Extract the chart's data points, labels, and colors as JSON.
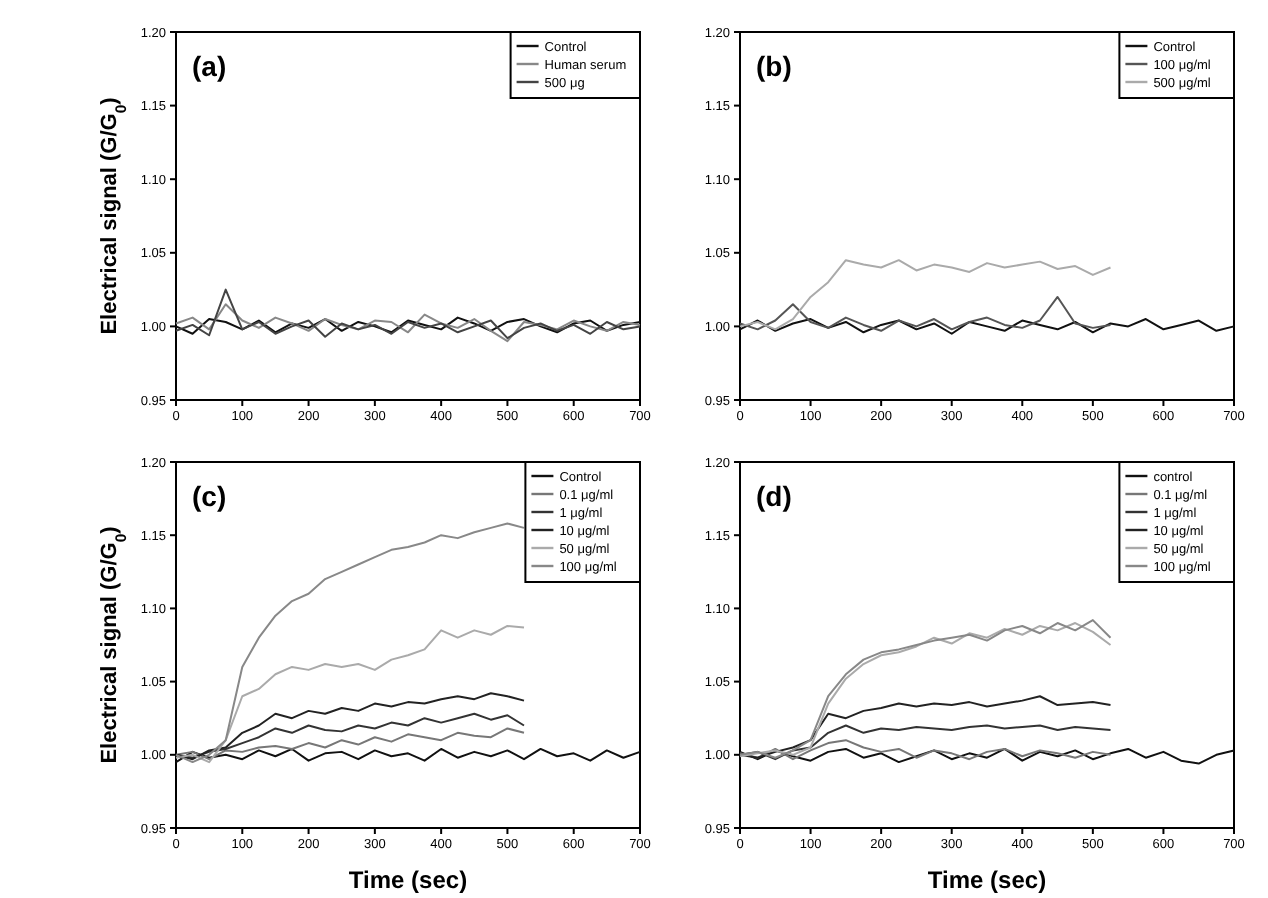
{
  "chart_data": [
    {
      "type": "line",
      "ylabel": "Electrical signal (G/G$_{0}$)",
      "annotations": [
        "(a)"
      ],
      "legend": "top right",
      "xlim": [
        0,
        700
      ],
      "xticks": [
        0,
        100,
        200,
        300,
        400,
        500,
        600,
        700
      ],
      "ylim": [
        0.95,
        1.2
      ],
      "yticks": [
        0.95,
        {
          "value": 1.0,
          "label": "1.00"
        },
        1.05,
        {
          "value": 1.1,
          "label": "1.10"
        },
        1.15,
        {
          "value": 1.2,
          "label": "1.20"
        }
      ],
      "x": [
        0,
        25,
        50,
        75,
        100,
        125,
        150,
        175,
        200,
        225,
        250,
        275,
        300,
        325,
        350,
        375,
        400,
        425,
        450,
        475,
        500,
        525,
        550,
        575,
        600,
        625,
        650,
        675,
        700
      ],
      "series": [
        {
          "name": "Control",
          "color": "#111111",
          "values": [
            1.0,
            0.995,
            1.005,
            1.003,
            0.998,
            1.004,
            0.996,
            1.002,
            0.999,
            1.005,
            0.997,
            1.003,
            1.0,
            0.996,
            1.004,
            1.001,
            0.998,
            1.006,
            1.002,
            0.997,
            1.003,
            1.005,
            1.0,
            0.996,
            1.002,
            1.004,
            0.997,
            1.001,
            1.003
          ]
        },
        {
          "name": "Human serum",
          "color": "#888888",
          "values": [
            1.002,
            1.006,
            0.998,
            1.015,
            1.004,
            0.999,
            1.006,
            1.002,
            0.997,
            1.005,
            1.001,
            0.998,
            1.004,
            1.003,
            0.996,
            1.008,
            1.002,
            0.999,
            1.005,
            0.997,
            0.99,
            1.003,
            1.001,
            0.998,
            1.004,
            1.0,
            0.997,
            1.003,
            1.001
          ]
        },
        {
          "name": "500 μg",
          "color": "#444444",
          "values": [
            0.997,
            1.001,
            0.994,
            1.025,
            0.998,
            1.003,
            0.995,
            1.0,
            1.004,
            0.993,
            1.002,
            0.998,
            1.001,
            0.995,
            1.003,
            0.999,
            1.002,
            0.996,
            1.0,
            1.004,
            0.992,
            0.999,
            1.002,
            0.997,
            1.001,
            0.995,
            1.003,
            0.998,
            1.0
          ]
        }
      ]
    },
    {
      "type": "line",
      "annotations": [
        "(b)"
      ],
      "legend": "top right",
      "xlim": [
        0,
        700
      ],
      "xticks": [
        0,
        100,
        200,
        300,
        400,
        500,
        600,
        700
      ],
      "ylim": [
        0.95,
        1.2
      ],
      "yticks": [
        0.95,
        {
          "value": 1.0,
          "label": "1.00"
        },
        1.05,
        {
          "value": 1.1,
          "label": "1.10"
        },
        1.15,
        {
          "value": 1.2,
          "label": "1.20"
        }
      ],
      "x": [
        0,
        25,
        50,
        75,
        100,
        125,
        150,
        175,
        200,
        225,
        250,
        275,
        300,
        325,
        350,
        375,
        400,
        425,
        450,
        475,
        500,
        525,
        550,
        575,
        600,
        625,
        650,
        675,
        700
      ],
      "series": [
        {
          "name": "Control",
          "color": "#111111",
          "values": [
            0.998,
            1.004,
            0.997,
            1.002,
            1.005,
            0.999,
            1.003,
            0.996,
            1.001,
            1.004,
            0.998,
            1.002,
            0.995,
            1.003,
            1.0,
            0.997,
            1.004,
            1.001,
            0.998,
            1.003,
            0.996,
            1.002,
            1.0,
            1.005,
            0.998,
            1.001,
            1.004,
            0.997,
            1.0
          ]
        },
        {
          "name": "100 μg/ml",
          "color": "#555555",
          "values": [
            1.002,
            0.998,
            1.004,
            1.015,
            1.003,
            0.999,
            1.006,
            1.001,
            0.997,
            1.004,
            1.0,
            1.005,
            0.998,
            1.003,
            1.006,
            1.001,
            0.999,
            1.004,
            1.02,
            1.002,
            0.999,
            1.001,
            null,
            null,
            null,
            null,
            null,
            null,
            null
          ]
        },
        {
          "name": "500 μg/ml",
          "color": "#aaaaaa",
          "values": [
            1.0,
            1.003,
            0.998,
            1.005,
            1.02,
            1.03,
            1.045,
            1.042,
            1.04,
            1.045,
            1.038,
            1.042,
            1.04,
            1.037,
            1.043,
            1.04,
            1.042,
            1.044,
            1.039,
            1.041,
            1.035,
            1.04,
            null,
            null,
            null,
            null,
            null,
            null,
            null
          ]
        }
      ]
    },
    {
      "type": "line",
      "ylabel": "Electrical signal (G/G$_{0}$)",
      "xlabel": "Time (sec)",
      "annotations": [
        "(c)"
      ],
      "legend": "top right",
      "xlim": [
        0,
        700
      ],
      "xticks": [
        0,
        100,
        200,
        300,
        400,
        500,
        600,
        700
      ],
      "ylim": [
        0.95,
        1.2
      ],
      "yticks": [
        0.95,
        {
          "value": 1.0,
          "label": "1.00"
        },
        1.05,
        {
          "value": 1.1,
          "label": "1.10"
        },
        1.15,
        {
          "value": 1.2,
          "label": "1.20"
        }
      ],
      "x": [
        0,
        25,
        50,
        75,
        100,
        125,
        150,
        175,
        200,
        225,
        250,
        275,
        300,
        325,
        350,
        375,
        400,
        425,
        450,
        475,
        500,
        525,
        550,
        575,
        600,
        625,
        650,
        675,
        700
      ],
      "series": [
        {
          "name": "Control",
          "color": "#111111",
          "values": [
            0.995,
            1.002,
            0.998,
            1.0,
            0.997,
            1.003,
            0.999,
            1.004,
            0.996,
            1.001,
            1.002,
            0.997,
            1.003,
            0.999,
            1.001,
            0.996,
            1.004,
            0.998,
            1.002,
            0.999,
            1.003,
            0.997,
            1.004,
            0.999,
            1.001,
            0.996,
            1.003,
            0.998,
            1.002
          ]
        },
        {
          "name": "0.1 μg/ml",
          "color": "#777777",
          "values": [
            1.0,
            1.002,
            0.997,
            1.003,
            1.002,
            1.005,
            1.006,
            1.004,
            1.008,
            1.005,
            1.01,
            1.007,
            1.012,
            1.009,
            1.014,
            1.012,
            1.01,
            1.015,
            1.013,
            1.012,
            1.018,
            1.015,
            null,
            null,
            null,
            null,
            null,
            null,
            null
          ]
        },
        {
          "name": "1 μg/ml",
          "color": "#333333",
          "values": [
            1.0,
            0.998,
            1.002,
            1.004,
            1.008,
            1.012,
            1.018,
            1.015,
            1.02,
            1.017,
            1.016,
            1.02,
            1.018,
            1.022,
            1.02,
            1.025,
            1.022,
            1.025,
            1.028,
            1.024,
            1.027,
            1.02,
            null,
            null,
            null,
            null,
            null,
            null,
            null
          ]
        },
        {
          "name": "10 μg/ml",
          "color": "#222222",
          "values": [
            1.0,
            0.997,
            1.003,
            1.005,
            1.015,
            1.02,
            1.028,
            1.025,
            1.03,
            1.028,
            1.032,
            1.03,
            1.035,
            1.033,
            1.036,
            1.035,
            1.038,
            1.04,
            1.038,
            1.042,
            1.04,
            1.037,
            null,
            null,
            null,
            null,
            null,
            null,
            null
          ]
        },
        {
          "name": "50 μg/ml",
          "color": "#aaaaaa",
          "values": [
            0.998,
            1.0,
            0.995,
            1.01,
            1.04,
            1.045,
            1.055,
            1.06,
            1.058,
            1.062,
            1.06,
            1.062,
            1.058,
            1.065,
            1.068,
            1.072,
            1.085,
            1.08,
            1.085,
            1.082,
            1.088,
            1.087,
            null,
            null,
            null,
            null,
            null,
            null,
            null
          ]
        },
        {
          "name": "100 μg/ml",
          "color": "#888888",
          "values": [
            1.0,
            0.995,
            1.0,
            1.01,
            1.06,
            1.08,
            1.095,
            1.105,
            1.11,
            1.12,
            1.125,
            1.13,
            1.135,
            1.14,
            1.142,
            1.145,
            1.15,
            1.148,
            1.152,
            1.155,
            1.158,
            1.155,
            null,
            null,
            null,
            null,
            null,
            null,
            null
          ]
        }
      ]
    },
    {
      "type": "line",
      "xlabel": "Time (sec)",
      "annotations": [
        "(d)"
      ],
      "legend": "top right",
      "xlim": [
        0,
        700
      ],
      "xticks": [
        0,
        100,
        200,
        300,
        400,
        500,
        600,
        700
      ],
      "ylim": [
        0.95,
        1.2
      ],
      "yticks": [
        0.95,
        {
          "value": 1.0,
          "label": "1.00"
        },
        1.05,
        {
          "value": 1.1,
          "label": "1.10"
        },
        1.15,
        {
          "value": 1.2,
          "label": "1.20"
        }
      ],
      "x": [
        0,
        25,
        50,
        75,
        100,
        125,
        150,
        175,
        200,
        225,
        250,
        275,
        300,
        325,
        350,
        375,
        400,
        425,
        450,
        475,
        500,
        525,
        550,
        575,
        600,
        625,
        650,
        675,
        700
      ],
      "series": [
        {
          "name": "control",
          "color": "#111111",
          "values": [
            1.002,
            0.997,
            1.003,
            0.999,
            0.996,
            1.002,
            1.004,
            0.998,
            1.001,
            0.995,
            0.999,
            1.003,
            0.997,
            1.001,
            0.998,
            1.004,
            0.996,
            1.002,
            0.999,
            1.003,
            0.997,
            1.001,
            1.004,
            0.998,
            1.002,
            0.996,
            0.994,
            1.0,
            1.003
          ]
        },
        {
          "name": "0.1 μg/ml",
          "color": "#777777",
          "values": [
            1.001,
            0.998,
            1.004,
            0.997,
            1.003,
            1.008,
            1.01,
            1.005,
            1.002,
            1.004,
            0.998,
            1.003,
            1.001,
            0.997,
            1.002,
            1.004,
            0.999,
            1.003,
            1.001,
            0.998,
            1.002,
            1.0,
            null,
            null,
            null,
            null,
            null,
            null,
            null
          ]
        },
        {
          "name": "1 μg/ml",
          "color": "#333333",
          "values": [
            1.0,
            1.002,
            0.997,
            1.003,
            1.005,
            1.015,
            1.02,
            1.015,
            1.018,
            1.017,
            1.019,
            1.018,
            1.017,
            1.019,
            1.02,
            1.018,
            1.019,
            1.02,
            1.017,
            1.019,
            1.018,
            1.017,
            null,
            null,
            null,
            null,
            null,
            null,
            null
          ]
        },
        {
          "name": "10 μg/ml",
          "color": "#222222",
          "values": [
            1.0,
            0.998,
            1.002,
            1.005,
            1.01,
            1.028,
            1.025,
            1.03,
            1.032,
            1.035,
            1.033,
            1.035,
            1.034,
            1.036,
            1.033,
            1.035,
            1.037,
            1.04,
            1.034,
            1.035,
            1.036,
            1.034,
            null,
            null,
            null,
            null,
            null,
            null,
            null
          ]
        },
        {
          "name": "50 μg/ml",
          "color": "#aaaaaa",
          "values": [
            0.999,
            1.001,
            1.003,
            1.0,
            1.005,
            1.035,
            1.052,
            1.062,
            1.068,
            1.07,
            1.074,
            1.08,
            1.076,
            1.083,
            1.08,
            1.086,
            1.082,
            1.088,
            1.085,
            1.09,
            1.084,
            1.075,
            null,
            null,
            null,
            null,
            null,
            null,
            null
          ]
        },
        {
          "name": "100 μg/ml",
          "color": "#888888",
          "values": [
            1.0,
            1.002,
            0.998,
            1.003,
            1.01,
            1.04,
            1.055,
            1.065,
            1.07,
            1.072,
            1.075,
            1.078,
            1.08,
            1.082,
            1.078,
            1.085,
            1.088,
            1.083,
            1.09,
            1.085,
            1.092,
            1.08,
            null,
            null,
            null,
            null,
            null,
            null,
            null
          ]
        }
      ]
    }
  ]
}
